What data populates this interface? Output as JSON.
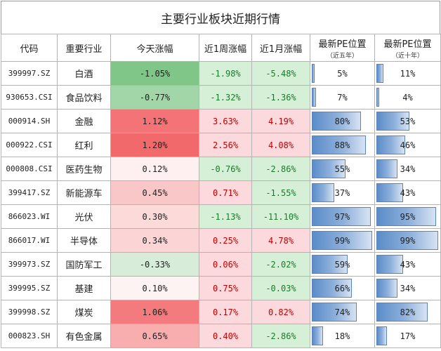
{
  "title": "主要行业板块近期行情",
  "headers": {
    "code": "代码",
    "industry": "重要行业",
    "today": "今天涨幅",
    "week": "近1周涨幅",
    "month": "近1月涨幅",
    "pe5": "最新PE位置",
    "pe5_sub": "（近五年）",
    "pe10": "最新PE位置",
    "pe10_sub": "（近十年）"
  },
  "rows": [
    {
      "code": "399997.SZ",
      "industry": "白酒",
      "today": "-1.05%",
      "week": "-1.98%",
      "month": "-5.48%",
      "pe5": "5%",
      "pe10": "11%"
    },
    {
      "code": "930653.CSI",
      "industry": "食品饮料",
      "today": "-0.77%",
      "week": "-1.32%",
      "month": "-1.36%",
      "pe5": "7%",
      "pe10": "4%"
    },
    {
      "code": "000914.SH",
      "industry": "金融",
      "today": "1.12%",
      "week": "3.63%",
      "month": "4.19%",
      "pe5": "80%",
      "pe10": "53%"
    },
    {
      "code": "000922.CSI",
      "industry": "红利",
      "today": "1.20%",
      "week": "2.56%",
      "month": "4.08%",
      "pe5": "88%",
      "pe10": "46%"
    },
    {
      "code": "000808.CSI",
      "industry": "医药生物",
      "today": "0.12%",
      "week": "-0.76%",
      "month": "-2.86%",
      "pe5": "55%",
      "pe10": "34%"
    },
    {
      "code": "399417.SZ",
      "industry": "新能源车",
      "today": "0.45%",
      "week": "0.71%",
      "month": "-1.55%",
      "pe5": "37%",
      "pe10": "43%"
    },
    {
      "code": "866023.WI",
      "industry": "光伏",
      "today": "0.30%",
      "week": "-1.13%",
      "month": "-11.10%",
      "pe5": "97%",
      "pe10": "95%"
    },
    {
      "code": "866017.WI",
      "industry": "半导体",
      "today": "0.34%",
      "week": "0.25%",
      "month": "4.78%",
      "pe5": "99%",
      "pe10": "99%"
    },
    {
      "code": "399973.SZ",
      "industry": "国防军工",
      "today": "-0.33%",
      "week": "0.06%",
      "month": "-2.02%",
      "pe5": "59%",
      "pe10": "43%"
    },
    {
      "code": "399995.SZ",
      "industry": "基建",
      "today": "0.10%",
      "week": "0.75%",
      "month": "-0.03%",
      "pe5": "66%",
      "pe10": "34%"
    },
    {
      "code": "399998.SZ",
      "industry": "煤炭",
      "today": "1.06%",
      "week": "0.17%",
      "month": "0.82%",
      "pe5": "74%",
      "pe10": "82%"
    },
    {
      "code": "000823.SH",
      "industry": "有色金属",
      "today": "0.65%",
      "week": "0.40%",
      "month": "-2.86%",
      "pe5": "18%",
      "pe10": "17%"
    }
  ]
}
